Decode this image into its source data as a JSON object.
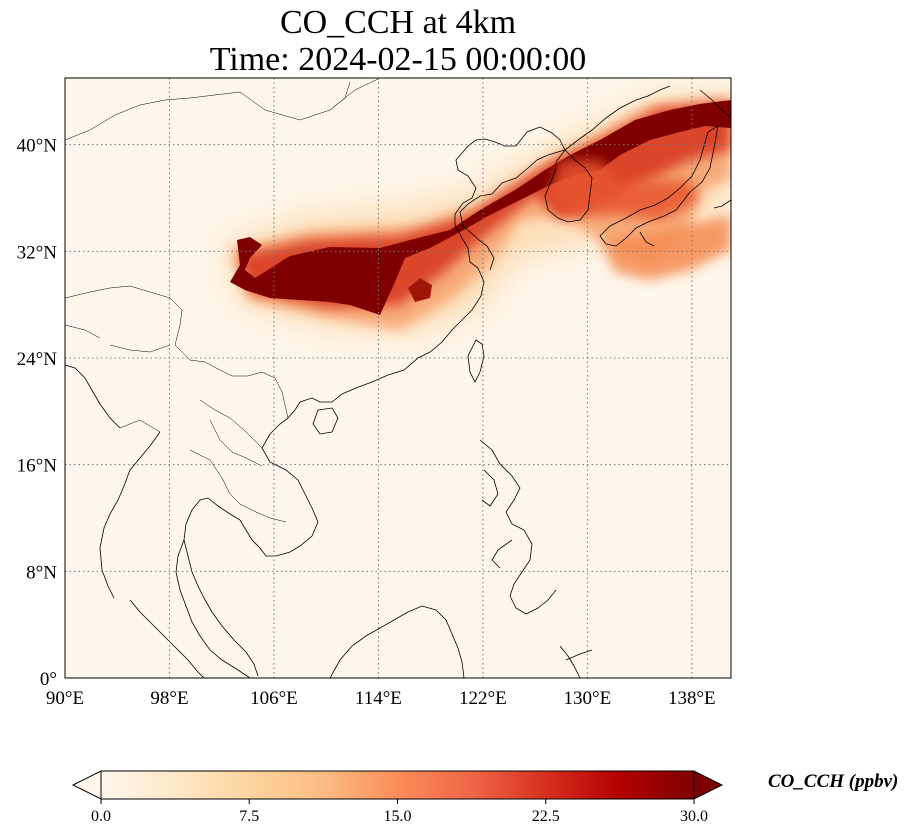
{
  "title": {
    "line1": "CO_CCH at 4km",
    "line2": "Time: 2024-02-15 00:00:00"
  },
  "map": {
    "projection": "PlateCarree",
    "lon_range": [
      90,
      141
    ],
    "lat_range": [
      0,
      45
    ],
    "gridlines": "dotted",
    "x_ticks": [
      {
        "value": 90,
        "label": "90°E"
      },
      {
        "value": 98,
        "label": "98°E"
      },
      {
        "value": 106,
        "label": "106°E"
      },
      {
        "value": 114,
        "label": "114°E"
      },
      {
        "value": 122,
        "label": "122°E"
      },
      {
        "value": 130,
        "label": "130°E"
      },
      {
        "value": 138,
        "label": "138°E"
      }
    ],
    "y_ticks": [
      {
        "value": 0,
        "label": "0°"
      },
      {
        "value": 8,
        "label": "8°N"
      },
      {
        "value": 16,
        "label": "16°N"
      },
      {
        "value": 24,
        "label": "24°N"
      },
      {
        "value": 32,
        "label": "32°N"
      },
      {
        "value": 40,
        "label": "40°N"
      }
    ],
    "plume_regions": [
      {
        "level": "very-high",
        "lon": 101.5,
        "lat": 30.5
      },
      {
        "level": "very-high",
        "lon": 109,
        "lat": 30
      },
      {
        "level": "very-high",
        "lon": 117,
        "lat": 33
      },
      {
        "level": "very-high",
        "lon": 128,
        "lat": 38.5
      },
      {
        "level": "very-high",
        "lon": 137,
        "lat": 42.5
      },
      {
        "level": "moderate",
        "lon": 130,
        "lat": 33
      },
      {
        "level": "moderate",
        "lon": 135,
        "lat": 31
      }
    ]
  },
  "colorbar": {
    "label": "CO_CCH (ppbv)",
    "min": 0.0,
    "max": 30.0,
    "extend": "both",
    "colormap": "OrRd",
    "ticks": [
      "0.0",
      "7.5",
      "15.0",
      "22.5",
      "30.0"
    ],
    "colors": [
      "#fff7ec",
      "#fee8c8",
      "#fdd49e",
      "#fdbb84",
      "#fc8d59",
      "#ef6548",
      "#d7301f",
      "#b30000",
      "#7f0000"
    ]
  }
}
